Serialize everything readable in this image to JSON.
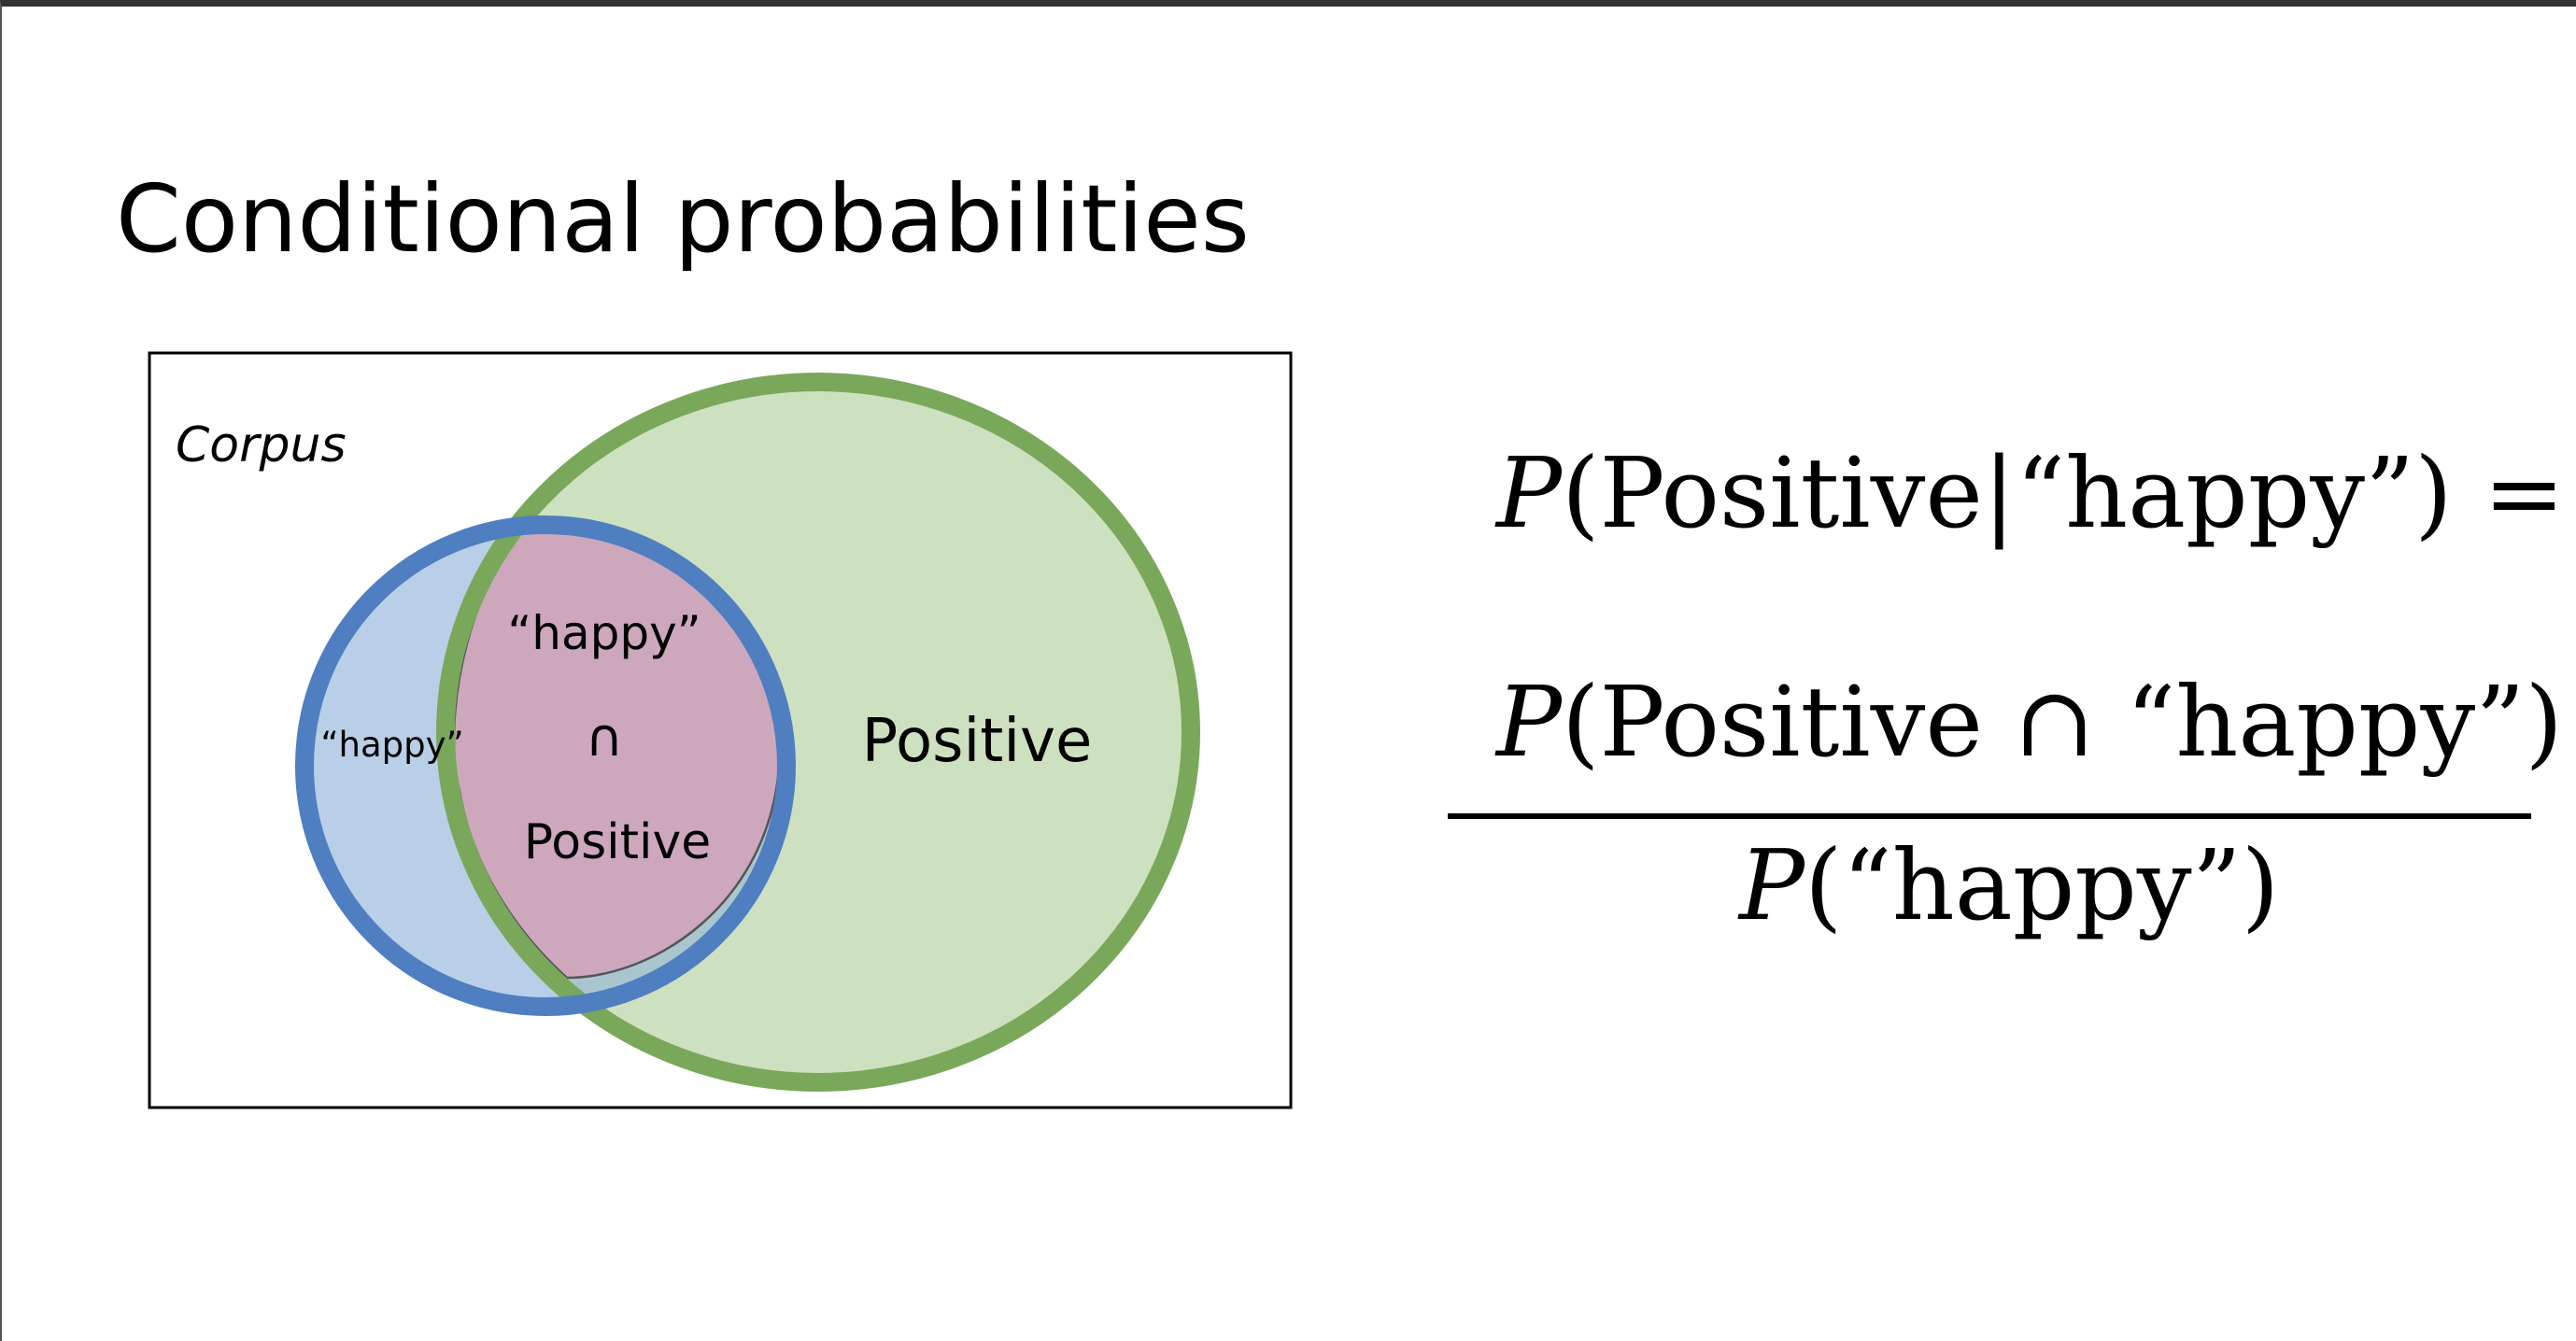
{
  "slide": {
    "title": "Conditional probabilities"
  },
  "venn": {
    "corpus_label": "Corpus",
    "happy_label": "“happy”",
    "intersection_top": "“happy”",
    "intersection_symbol": "∩",
    "intersection_bottom": "Positive",
    "positive_label": "Positive",
    "colors": {
      "happy_fill": "#b8cfe7",
      "happy_stroke": "#4f7ec1",
      "positive_fill": "#cde0c0",
      "positive_stroke": "#79a85a",
      "intersection_fill": "#cda8bd",
      "overlap_fill": "#a9c6cf"
    }
  },
  "formula": {
    "lhs_p": "P",
    "lhs_args": "(Positive|“happy”) =",
    "numerator_p": "P",
    "numerator_args": "(Positive ∩ “happy”)",
    "denominator_p": "P",
    "denominator_args": "(“happy”)"
  }
}
